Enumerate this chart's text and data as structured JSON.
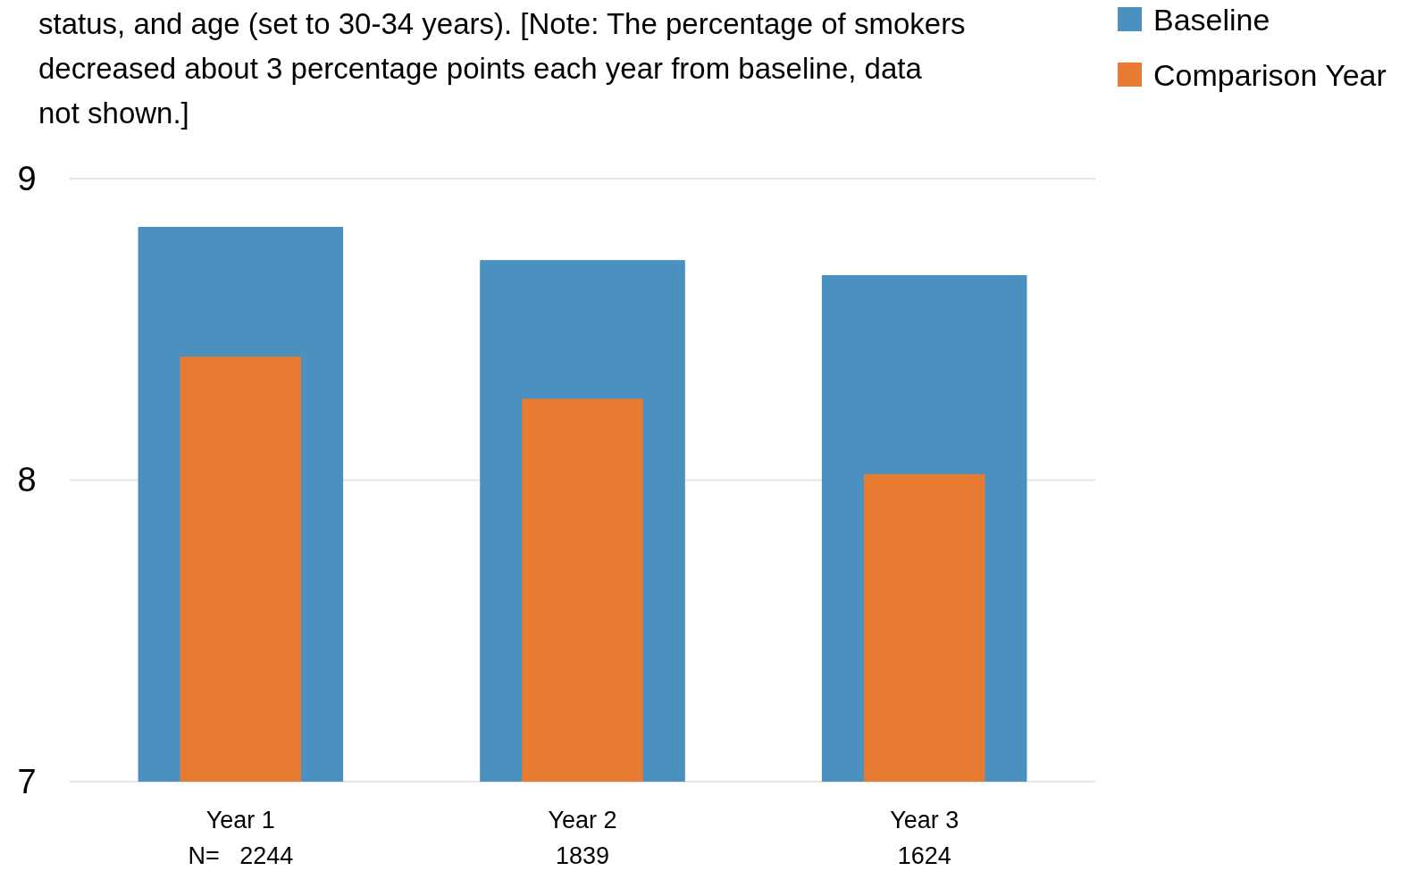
{
  "chart_data": {
    "type": "bar",
    "subtitle": "status, and age (set to 30-34 years). [Note: The percentage of smokers decreased about 3 percentage points each year from baseline, data not shown.]",
    "categories": [
      "Year 1\nN=   2244",
      "Year 2\n1839",
      "Year 3\n1624"
    ],
    "series": [
      {
        "name": "Baseline",
        "color": "#4a91c0",
        "values": [
          8.84,
          8.73,
          8.68
        ]
      },
      {
        "name": "Comparison Year",
        "color": "#e87b32",
        "values": [
          8.41,
          8.27,
          8.02
        ]
      }
    ],
    "ylim": [
      7,
      9
    ],
    "yticks": [
      7,
      8,
      9
    ],
    "grid": "y",
    "legend": "top right"
  }
}
